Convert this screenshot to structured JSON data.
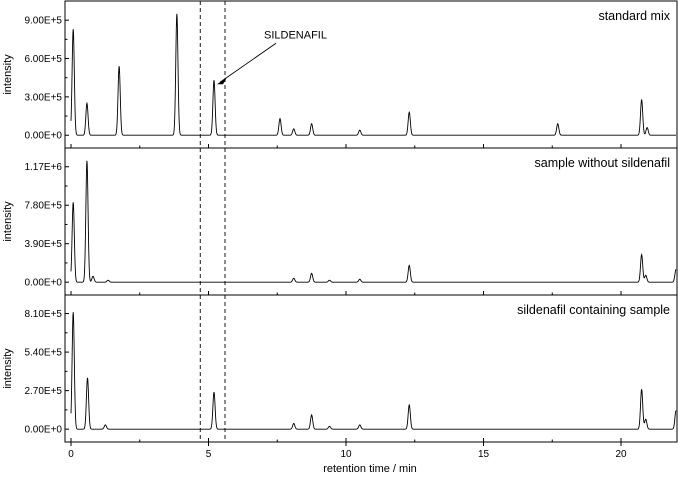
{
  "chart_data": {
    "type": "line",
    "x_label": "retention time / min",
    "x_range": [
      0,
      22
    ],
    "x_ticks": [
      "0",
      "5",
      "10",
      "15",
      "20"
    ],
    "x_tick_values": [
      0,
      5,
      10,
      15,
      20
    ],
    "peak_width_min": 0.04,
    "vertical_markers": [
      4.7,
      5.6
    ],
    "panels": [
      {
        "title": "standard mix",
        "ylabel": "intensity",
        "ylim": [
          -100000,
          1050000
        ],
        "y_ticks": [
          "0.00E+0",
          "3.00E+5",
          "6.00E+5",
          "9.00E+5"
        ],
        "y_tick_values": [
          0,
          300000,
          600000,
          900000
        ],
        "annotation": {
          "text": "SILDENAFIL",
          "x": 5.2,
          "y": 430000
        },
        "peaks": [
          {
            "x": 0.08,
            "y": 830000
          },
          {
            "x": 0.58,
            "y": 250000
          },
          {
            "x": 1.75,
            "y": 540000
          },
          {
            "x": 3.85,
            "y": 950000
          },
          {
            "x": 5.2,
            "y": 430000
          },
          {
            "x": 7.6,
            "y": 130000
          },
          {
            "x": 8.1,
            "y": 50000
          },
          {
            "x": 8.75,
            "y": 90000
          },
          {
            "x": 10.5,
            "y": 40000
          },
          {
            "x": 12.3,
            "y": 180000
          },
          {
            "x": 17.7,
            "y": 90000
          },
          {
            "x": 20.75,
            "y": 280000
          },
          {
            "x": 20.95,
            "y": 60000
          }
        ]
      },
      {
        "title": "sample without sildenafil",
        "ylabel": "intensity",
        "ylim": [
          -130000,
          1360000
        ],
        "y_ticks": [
          "0.00E+0",
          "3.90E+5",
          "7.80E+5",
          "1.17E+6"
        ],
        "y_tick_values": [
          0,
          390000,
          780000,
          1170000
        ],
        "peaks": [
          {
            "x": 0.08,
            "y": 810000
          },
          {
            "x": 0.58,
            "y": 1230000
          },
          {
            "x": 0.8,
            "y": 60000
          },
          {
            "x": 1.35,
            "y": 20000
          },
          {
            "x": 8.1,
            "y": 40000
          },
          {
            "x": 8.75,
            "y": 90000
          },
          {
            "x": 9.4,
            "y": 20000
          },
          {
            "x": 10.5,
            "y": 30000
          },
          {
            "x": 12.3,
            "y": 170000
          },
          {
            "x": 20.75,
            "y": 280000
          },
          {
            "x": 20.9,
            "y": 70000
          },
          {
            "x": 22.0,
            "y": 130000
          }
        ]
      },
      {
        "title": "sildenafil containing sample",
        "ylabel": "intensity",
        "ylim": [
          -90000,
          940000
        ],
        "y_ticks": [
          "0.00E+0",
          "2.70E+5",
          "5.40E+5",
          "8.10E+5"
        ],
        "y_tick_values": [
          0,
          270000,
          540000,
          810000
        ],
        "peaks": [
          {
            "x": 0.08,
            "y": 820000
          },
          {
            "x": 0.6,
            "y": 360000
          },
          {
            "x": 1.25,
            "y": 30000
          },
          {
            "x": 5.2,
            "y": 260000
          },
          {
            "x": 8.1,
            "y": 40000
          },
          {
            "x": 8.75,
            "y": 100000
          },
          {
            "x": 9.4,
            "y": 20000
          },
          {
            "x": 10.5,
            "y": 30000
          },
          {
            "x": 12.3,
            "y": 170000
          },
          {
            "x": 20.75,
            "y": 280000
          },
          {
            "x": 20.9,
            "y": 70000
          },
          {
            "x": 22.0,
            "y": 130000
          }
        ]
      }
    ]
  }
}
